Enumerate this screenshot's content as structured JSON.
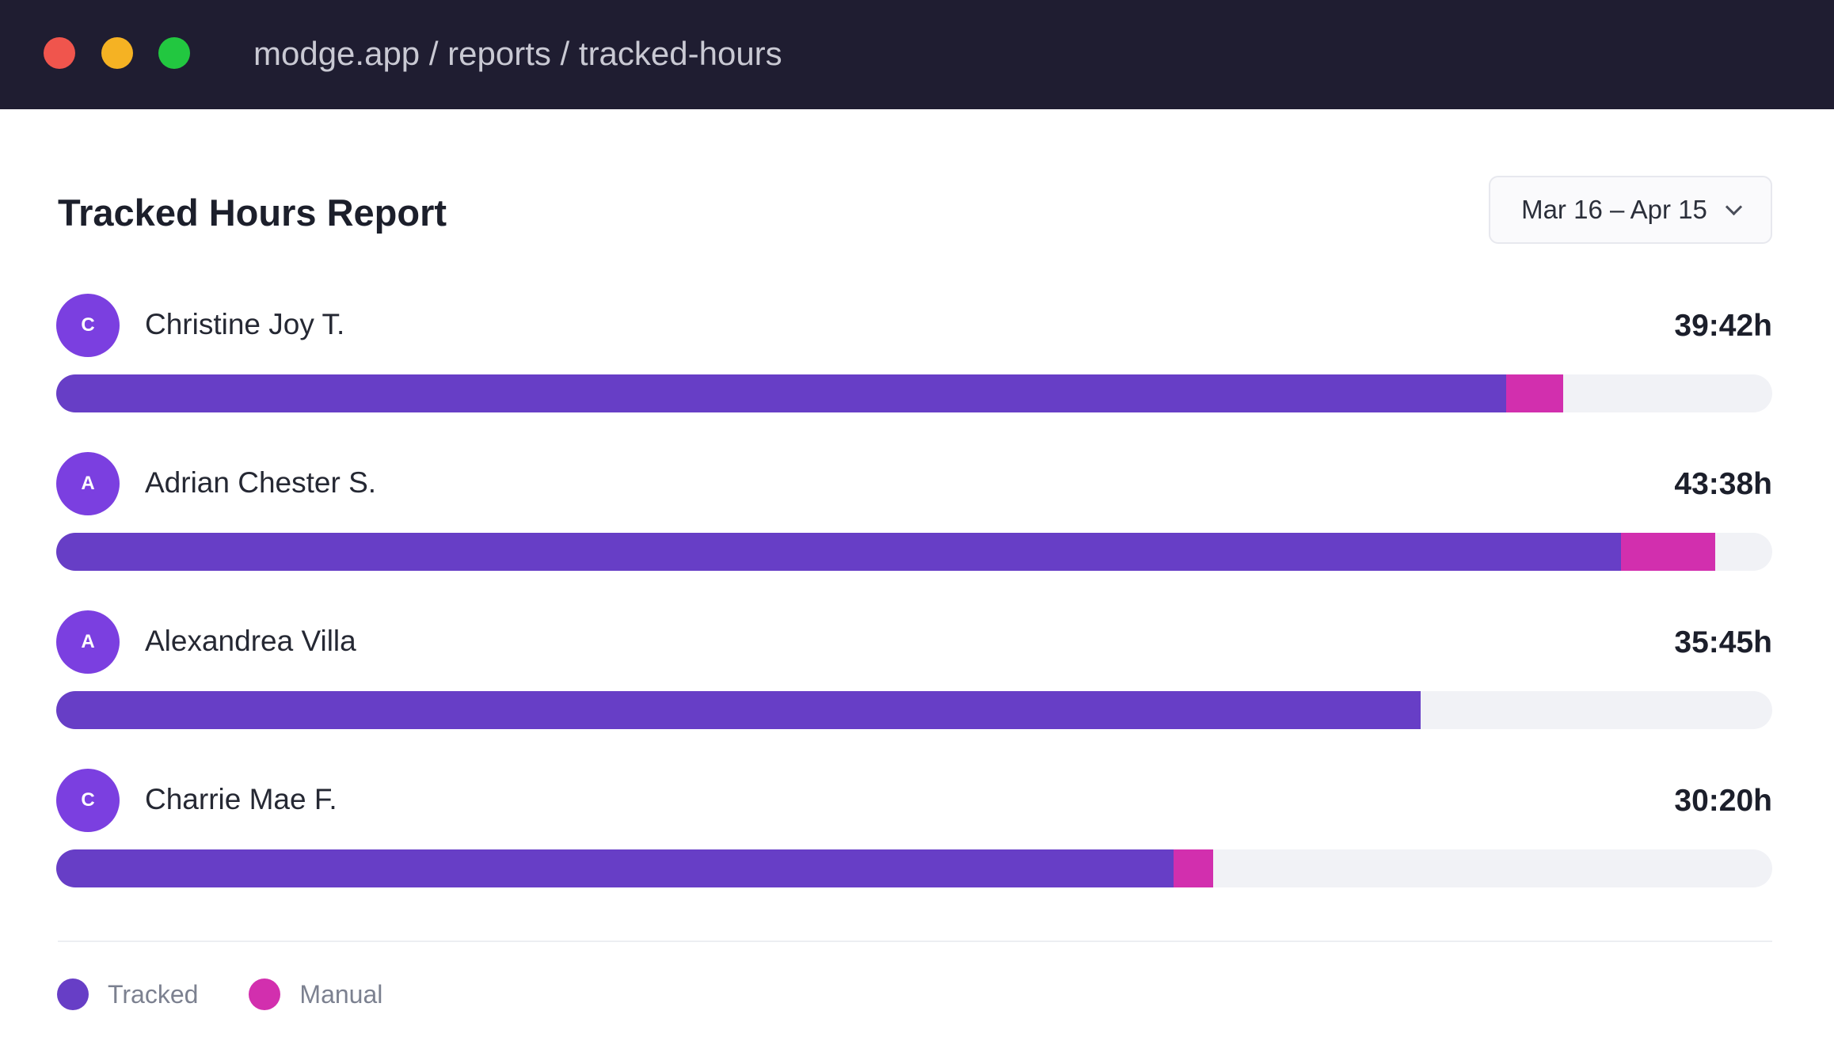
{
  "window": {
    "url": "modge.app / reports / tracked-hours"
  },
  "report": {
    "title": "Tracked Hours Report",
    "date_range": "Mar 16 – Apr 15"
  },
  "colors": {
    "tracked": "#673ec6",
    "manual": "#d22fae",
    "avatar": "#7b3fe0",
    "bar_background": "#f1f2f6"
  },
  "members": [
    {
      "initial": "C",
      "name": "Christine Joy T.",
      "total": "39:42h",
      "tracked_pct": 84.5,
      "manual_pct": 3.3
    },
    {
      "initial": "A",
      "name": "Adrian Chester S.",
      "total": "43:38h",
      "tracked_pct": 91.2,
      "manual_pct": 5.5
    },
    {
      "initial": "A",
      "name": "Alexandrea Villa",
      "total": "35:45h",
      "tracked_pct": 79.5,
      "manual_pct": 0
    },
    {
      "initial": "C",
      "name": "Charrie Mae F.",
      "total": "30:20h",
      "tracked_pct": 65.1,
      "manual_pct": 2.3
    }
  ],
  "legend": [
    {
      "label": "Tracked",
      "color": "#673ec6"
    },
    {
      "label": "Manual",
      "color": "#d22fae"
    }
  ]
}
